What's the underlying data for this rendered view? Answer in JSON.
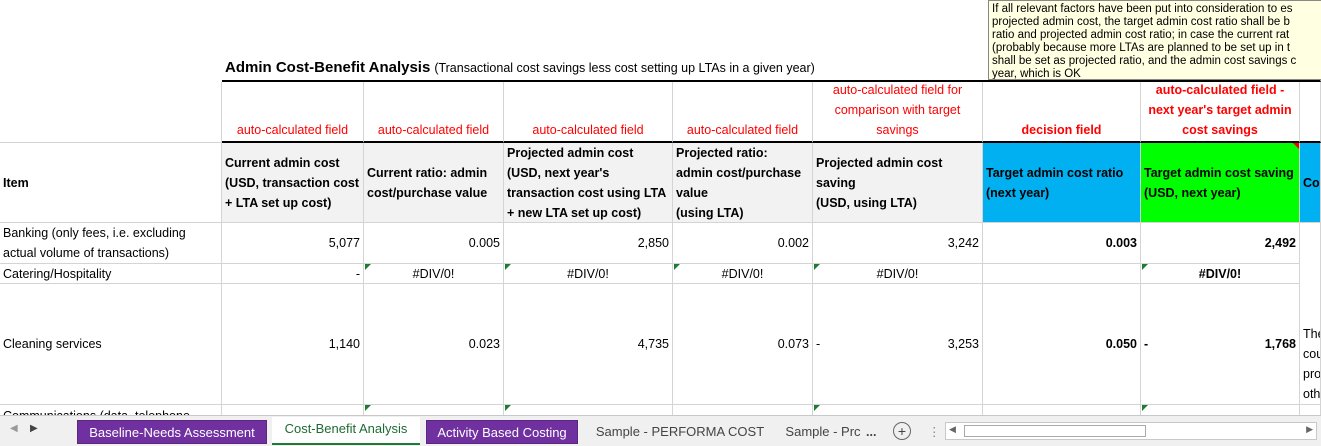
{
  "sheet": {
    "title": "Admin Cost-Benefit Analysis",
    "subtitle": "(Transactional cost savings less cost setting up LTAs in a given year)",
    "comment": [
      "If all relevant factors have been put into consideration to es",
      "projected admin cost, the target admin cost ratio shall be b",
      "ratio and projected admin cost ratio; in case the current rat",
      "(probably because more LTAs are planned to be set up in t",
      "shall be set as projected ratio, and the admin cost savings c",
      "year, which is OK"
    ],
    "field_notes": [
      "auto-calculated field",
      "auto-calculated field",
      "auto-calculated field",
      "auto-calculated field",
      "auto-calculated field for comparison with target savings",
      "decision field",
      "auto-calculated field - next year's target admin cost savings"
    ],
    "headers": [
      "Item",
      "Current admin cost\n(USD, transaction cost + LTA set up cost)",
      "Current ratio: admin cost/purchase value",
      "Projected admin cost\n(USD, next year's transaction cost using LTA + new LTA set up cost)",
      "Projected ratio:\nadmin cost/purchase value\n(using LTA)",
      "Projected admin cost saving\n(USD, using LTA)",
      "Target admin cost ratio (next year)",
      "Target admin cost saving (USD, next year)",
      "Co"
    ],
    "rows": [
      [
        "Banking (only fees, i.e. excluding actual volume of transactions)",
        "5,077",
        "0.005",
        "2,850",
        "0.002",
        "3,242",
        "0.003",
        "2,492",
        null
      ],
      [
        "Catering/Hospitality",
        "-",
        "#DIV/0!",
        "#DIV/0!",
        "#DIV/0!",
        "#DIV/0!",
        null,
        "#DIV/0!",
        null
      ],
      [
        "Cleaning services",
        "1,140",
        "0.023",
        "4,735",
        "0.073",
        [
          "-",
          "3,253"
        ],
        "0.050",
        [
          "-",
          "1,768"
        ],
        "The\ncou\npro\noth"
      ],
      [
        "Communications (data, telephone",
        null,
        null,
        null,
        null,
        null,
        null,
        null,
        null
      ]
    ]
  },
  "tabs": {
    "items": [
      "Baseline-Needs Assessment",
      "Cost-Benefit Analysis",
      "Activity Based Costing",
      "Sample - PERFORMA COST",
      "Sample - Prc"
    ],
    "overflow": "..."
  }
}
